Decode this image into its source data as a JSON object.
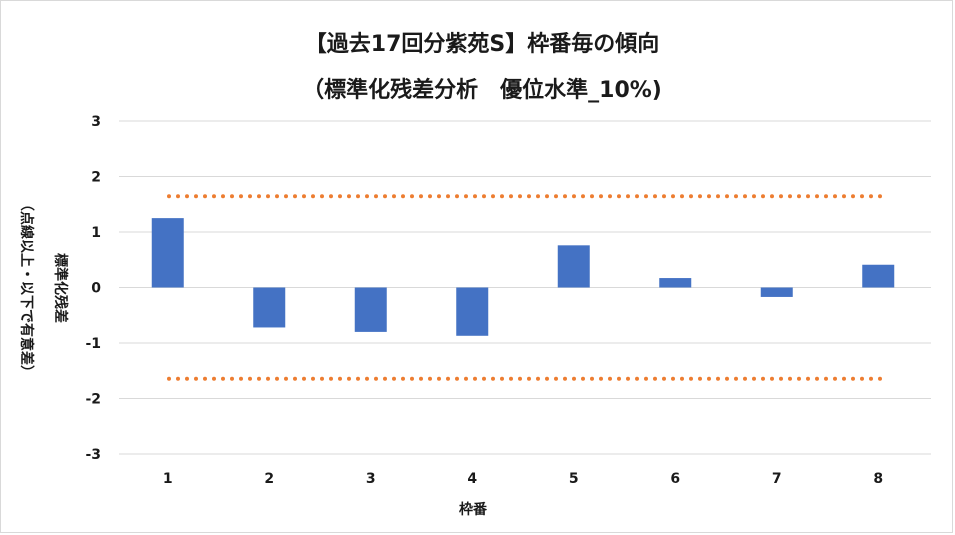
{
  "chart_data": {
    "type": "bar",
    "title_lines": [
      "【過去17回分紫苑S】枠番毎の傾向",
      "（標準化残差分析　優位水準_10%)"
    ],
    "xlabel": "枠番",
    "ylabel_lines": [
      "標準化残差",
      "（点線以上・以下で有意差）"
    ],
    "categories": [
      "1",
      "2",
      "3",
      "4",
      "5",
      "6",
      "7",
      "8"
    ],
    "values": [
      1.25,
      -0.72,
      -0.8,
      -0.87,
      0.76,
      0.17,
      -0.17,
      0.41
    ],
    "ylim": [
      -3,
      3
    ],
    "yticks": [
      "3",
      "2",
      "1",
      "0",
      "-1",
      "-2",
      "-3"
    ],
    "threshold_lines": [
      1.645,
      -1.645
    ],
    "grid": true,
    "bar_color": "#4472C4",
    "threshold_color": "#ED7D31",
    "grid_color": "#d9d9d9"
  }
}
